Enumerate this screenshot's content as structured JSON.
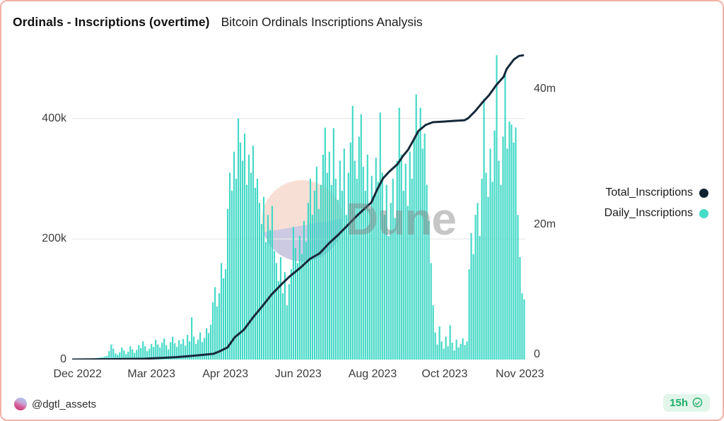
{
  "header": {
    "title": "Ordinals - Inscriptions (overtime)",
    "subtitle": "Bitcoin Ordinals Inscriptions Analysis"
  },
  "legend": [
    {
      "label": "Total_Inscriptions",
      "color": "#0f2230"
    },
    {
      "label": "Daily_Inscriptions",
      "color": "#45dcc8"
    }
  ],
  "watermark": {
    "text": "Dune"
  },
  "footer": {
    "handle": "@dgtl_assets",
    "age": "15h",
    "badge_icon": "verified-check"
  },
  "colors": {
    "frame_border": "#f3b1a5",
    "bar": "#41d8c6",
    "line": "#17293a",
    "grid": "#e9e9e9",
    "axis_text": "#3c3c3c",
    "badge_bg": "#e2f5ea",
    "badge_green": "#1fae6a",
    "watermark_pink": "#f8dcd2",
    "watermark_lavender": "#c7c4e0"
  },
  "chart_data": {
    "type": "bar+line",
    "title": "Ordinals - Inscriptions (overtime)",
    "x_range": [
      "Dec 2022",
      "Nov 2023"
    ],
    "x_ticks": [
      {
        "label": "Dec 2022",
        "f": 0.012
      },
      {
        "label": "Mar 2023",
        "f": 0.175
      },
      {
        "label": "Apr 2023",
        "f": 0.338
      },
      {
        "label": "Jun 2023",
        "f": 0.499
      },
      {
        "label": "Aug 2023",
        "f": 0.663
      },
      {
        "label": "Oct 2023",
        "f": 0.822
      },
      {
        "label": "Nov 2023",
        "f": 0.988
      }
    ],
    "left_axis": {
      "title": "Daily inscriptions (thousands)",
      "max_k": 524,
      "ticks": [
        {
          "label": "0",
          "v": 0
        },
        {
          "label": "200k",
          "v": 200
        },
        {
          "label": "400k",
          "v": 400
        }
      ]
    },
    "right_axis": {
      "title": "Total inscriptions (millions)",
      "max_m": 46.7,
      "ticks": [
        {
          "label": "0",
          "v": 0
        },
        {
          "label": "20m",
          "v": 20
        },
        {
          "label": "40m",
          "v": 40
        }
      ]
    },
    "grid": "horizontal-only",
    "legend_position": "right",
    "series": [
      {
        "name": "Daily_Inscriptions",
        "type": "bar",
        "axis": "left",
        "unit": "thousand inscriptions per day",
        "color": "#41d8c6",
        "values_k": [
          0.3,
          0.4,
          0.5,
          0.6,
          0.5,
          0.7,
          0.8,
          1,
          1.2,
          1.5,
          2,
          2.5,
          3,
          3.5,
          4,
          5,
          6,
          14,
          25,
          18,
          10,
          8,
          12,
          20,
          15,
          9,
          13,
          22,
          17,
          11,
          16,
          24,
          19,
          30,
          22,
          14,
          18,
          26,
          21,
          33,
          25,
          20,
          28,
          35,
          24,
          17,
          29,
          38,
          27,
          21,
          32,
          26,
          34,
          23,
          41,
          30,
          70,
          38,
          26,
          33,
          45,
          29,
          36,
          52,
          44,
          58,
          95,
          120,
          88,
          110,
          160,
          135,
          150,
          250,
          310,
          280,
          345,
          300,
          400,
          360,
          330,
          375,
          290,
          340,
          310,
          355,
          285,
          300,
          260,
          225,
          270,
          195,
          240,
          215,
          255,
          180,
          160,
          130,
          170,
          110,
          145,
          90,
          125,
          150,
          220,
          185,
          160,
          205,
          175,
          230,
          195,
          260,
          300,
          240,
          280,
          320,
          250,
          290,
          340,
          385,
          310,
          345,
          290,
          384,
          300,
          265,
          330,
          280,
          350,
          240,
          310,
          360,
          421,
          330,
          300,
          370,
          407,
          320,
          280,
          340,
          250,
          305,
          270,
          335,
          295,
          410,
          310,
          240,
          290,
          205,
          260,
          300,
          235,
          330,
          418,
          340,
          280,
          325,
          255,
          345,
          300,
          365,
          440,
          380,
          418,
          350,
          375,
          290,
          230,
          160,
          90,
          45,
          25,
          55,
          30,
          18,
          38,
          22,
          57,
          28,
          15,
          33,
          20,
          26,
          35,
          24,
          30,
          150,
          210,
          175,
          240,
          260,
          205,
          300,
          433,
          310,
          270,
          350,
          295,
          380,
          505,
          330,
          290,
          370,
          474,
          350,
          395,
          390,
          360,
          385,
          240,
          170,
          110,
          100
        ]
      },
      {
        "name": "Total_Inscriptions",
        "type": "line",
        "axis": "right",
        "unit": "million inscriptions (cumulative)",
        "color": "#17293a",
        "points_fm": [
          [
            0,
            0
          ],
          [
            0.08,
            0.05
          ],
          [
            0.16,
            0.12
          ],
          [
            0.2,
            0.25
          ],
          [
            0.23,
            0.35
          ],
          [
            0.265,
            0.55
          ],
          [
            0.29,
            0.7
          ],
          [
            0.312,
            0.85
          ],
          [
            0.325,
            1.2
          ],
          [
            0.343,
            1.8
          ],
          [
            0.359,
            3.3
          ],
          [
            0.379,
            4.4
          ],
          [
            0.4,
            6.3
          ],
          [
            0.421,
            8.0
          ],
          [
            0.44,
            9.6
          ],
          [
            0.463,
            11.2
          ],
          [
            0.48,
            12.3
          ],
          [
            0.504,
            13.6
          ],
          [
            0.525,
            14.9
          ],
          [
            0.546,
            15.7
          ],
          [
            0.567,
            17.2
          ],
          [
            0.588,
            18.5
          ],
          [
            0.61,
            20.0
          ],
          [
            0.629,
            21.3
          ],
          [
            0.648,
            22.5
          ],
          [
            0.66,
            23.2
          ],
          [
            0.672,
            25.0
          ],
          [
            0.686,
            26.8
          ],
          [
            0.7,
            27.8
          ],
          [
            0.718,
            28.9
          ],
          [
            0.73,
            30.1
          ],
          [
            0.741,
            31.0
          ],
          [
            0.752,
            32.3
          ],
          [
            0.764,
            33.8
          ],
          [
            0.78,
            34.7
          ],
          [
            0.796,
            35.1
          ],
          [
            0.82,
            35.2
          ],
          [
            0.842,
            35.3
          ],
          [
            0.866,
            35.4
          ],
          [
            0.874,
            35.7
          ],
          [
            0.889,
            36.7
          ],
          [
            0.905,
            38.0
          ],
          [
            0.92,
            39.1
          ],
          [
            0.936,
            40.6
          ],
          [
            0.952,
            41.8
          ],
          [
            0.959,
            43.0
          ],
          [
            0.975,
            44.4
          ],
          [
            0.986,
            44.9
          ],
          [
            0.995,
            45.0
          ]
        ]
      }
    ]
  }
}
